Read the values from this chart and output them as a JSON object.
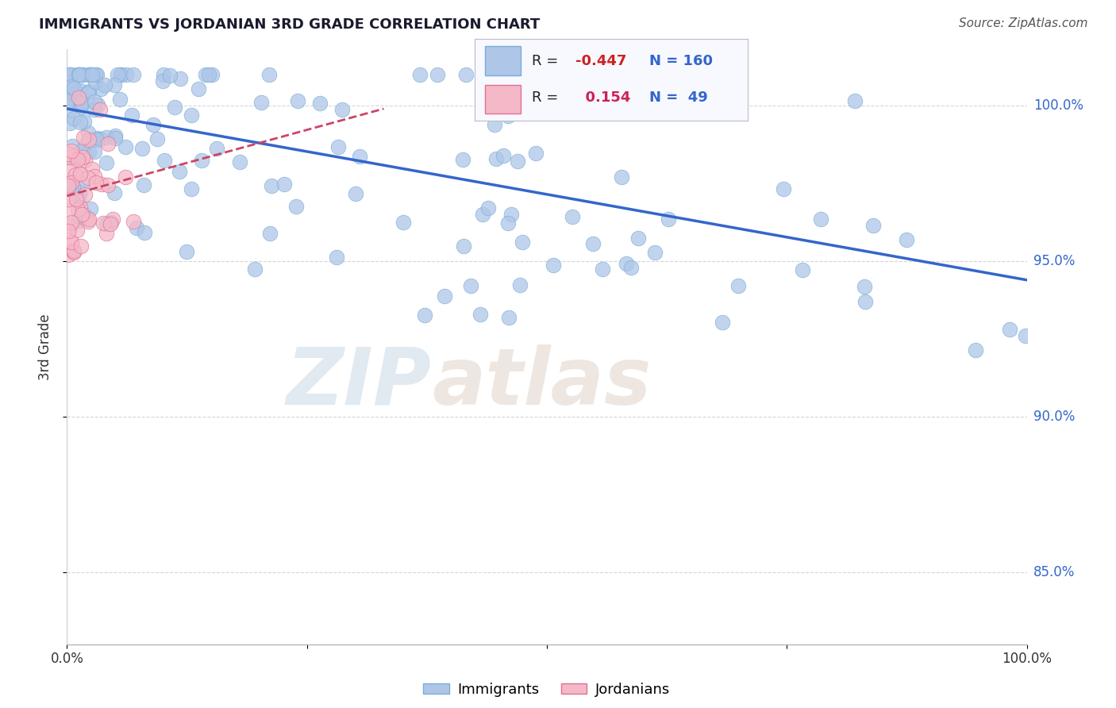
{
  "title": "IMMIGRANTS VS JORDANIAN 3RD GRADE CORRELATION CHART",
  "source_text": "Source: ZipAtlas.com",
  "ylabel": "3rd Grade",
  "watermark_zip": "ZIP",
  "watermark_atlas": "atlas",
  "blue_R": -0.447,
  "blue_N": 160,
  "pink_R": 0.154,
  "pink_N": 49,
  "blue_color": "#aec6e8",
  "blue_edge_color": "#7aaed6",
  "blue_line_color": "#3366cc",
  "pink_color": "#f5b8c8",
  "pink_edge_color": "#e07090",
  "pink_line_color": "#cc4466",
  "xmin": 0.0,
  "xmax": 1.0,
  "ymin": 0.827,
  "ymax": 1.018,
  "blue_line_x0": 0.0,
  "blue_line_y0": 0.999,
  "blue_line_x1": 1.0,
  "blue_line_y1": 0.944,
  "pink_line_x0": 0.0,
  "pink_line_y0": 0.971,
  "pink_line_x1": 0.33,
  "pink_line_y1": 0.999,
  "y_tick_positions": [
    0.85,
    0.9,
    0.95,
    1.0
  ],
  "y_tick_labels": [
    "85.0%",
    "90.0%",
    "95.0%",
    "100.0%"
  ],
  "title_fontsize": 13,
  "tick_fontsize": 12,
  "legend_fontsize": 13,
  "source_fontsize": 11
}
